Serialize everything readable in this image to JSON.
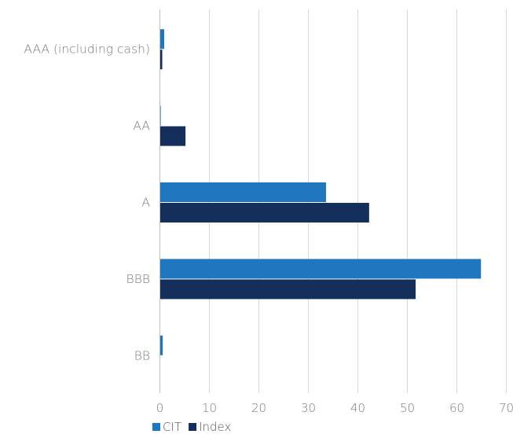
{
  "chart_data": {
    "type": "bar",
    "orientation": "horizontal",
    "categories": [
      "AAA (including cash)",
      "AA",
      "A",
      "BBB",
      "BB"
    ],
    "series": [
      {
        "name": "CIT",
        "color": "#1f77c0",
        "values": [
          0.8,
          0.1,
          33.5,
          64.8,
          0.5
        ]
      },
      {
        "name": "Index",
        "color": "#152f5c",
        "values": [
          0.4,
          5.1,
          42.2,
          51.6,
          0
        ]
      }
    ],
    "xlim": [
      0,
      70
    ],
    "xticks": [
      "0",
      "10",
      "20",
      "30",
      "40",
      "50",
      "60",
      "70"
    ],
    "grid": "vertical",
    "legend": "bottom-left"
  }
}
